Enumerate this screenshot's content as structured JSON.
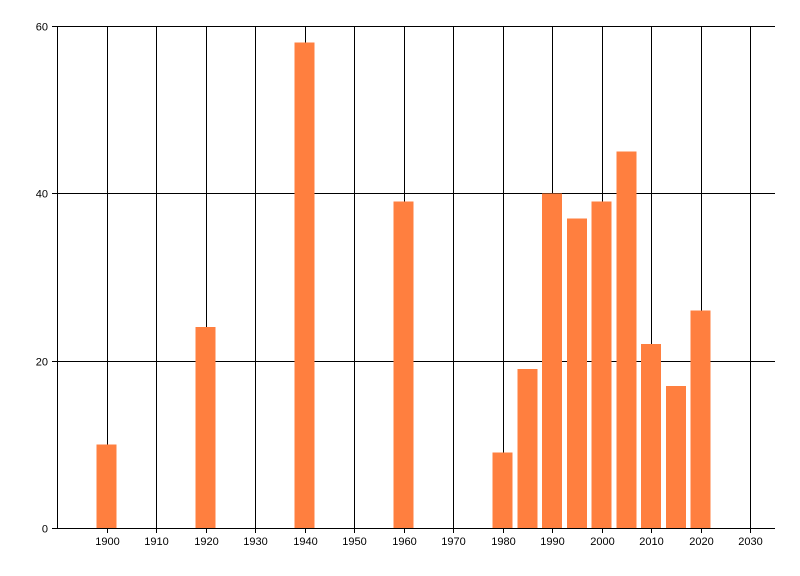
{
  "chart_data": {
    "type": "bar",
    "title": "",
    "xlabel": "",
    "ylabel": "",
    "x": [
      1900,
      1920,
      1940,
      1960,
      1980,
      1985,
      1990,
      1995,
      2000,
      2005,
      2010,
      2015,
      2020
    ],
    "values": [
      10,
      24,
      58,
      39,
      9,
      19,
      40,
      37,
      39,
      45,
      22,
      17,
      26
    ],
    "xlim": [
      1890,
      2035
    ],
    "ylim": [
      0,
      60
    ],
    "x_ticks": [
      1900,
      1910,
      1920,
      1930,
      1940,
      1950,
      1960,
      1970,
      1980,
      1990,
      2000,
      2010,
      2020,
      2030
    ],
    "y_ticks": [
      0,
      20,
      40,
      60
    ],
    "grid": true,
    "bar_color": "#ff7f3f",
    "grid_color": "#000000",
    "background": "#ffffff"
  }
}
